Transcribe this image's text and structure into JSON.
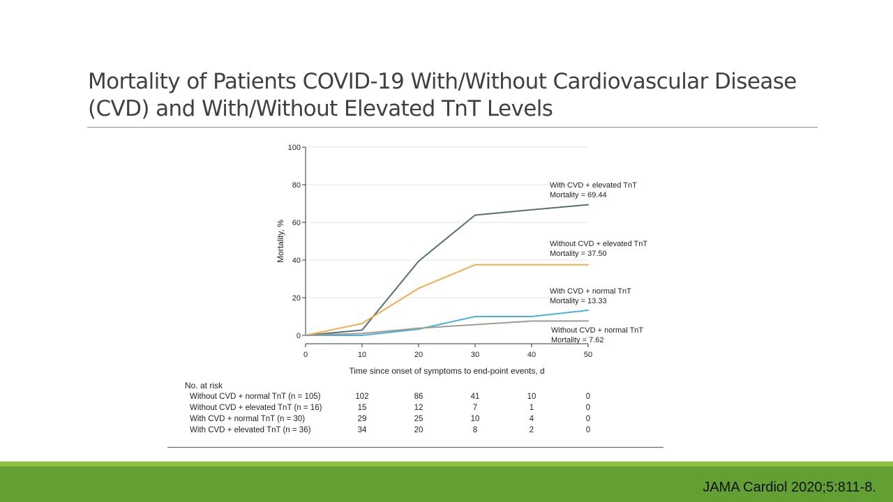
{
  "slide": {
    "title_line1": "Mortality of Patients COVID-19 With/Without Cardiovascular Disease",
    "title_line2": "(CVD) and With/Without Elevated TnT Levels",
    "citation": "JAMA Cardiol 2020;5:811-8."
  },
  "colors": {
    "accent_green": "#62a033",
    "accent_green_light": "#8cbf42"
  },
  "chart_data": {
    "type": "line",
    "xlabel": "Time since onset of symptoms to end-point events, d",
    "ylabel": "Mortality, %",
    "xlim": [
      0,
      50
    ],
    "ylim": [
      0,
      100
    ],
    "xticks": [
      0,
      10,
      20,
      30,
      40,
      50
    ],
    "yticks": [
      0,
      20,
      40,
      60,
      80,
      100
    ],
    "x": [
      0,
      10,
      20,
      30,
      40,
      50
    ],
    "grid": false,
    "series": [
      {
        "name": "With CVD + elevated TnT",
        "values": [
          0,
          2.8,
          39.4,
          63.9,
          66.7,
          69.4
        ],
        "color": "#546e7a",
        "label_line1": "With CVD + elevated TnT",
        "label_line2": "Mortality = 69.44"
      },
      {
        "name": "Without CVD + elevated TnT",
        "values": [
          0,
          6.3,
          25.0,
          37.5,
          37.5,
          37.5
        ],
        "color": "#f0ad4e",
        "label_line1": "Without CVD + elevated TnT",
        "label_line2": "Mortality = 37.50"
      },
      {
        "name": "With CVD + normal TnT",
        "values": [
          0,
          0,
          3.3,
          10.0,
          10.0,
          13.33
        ],
        "color": "#4ab1dc",
        "label_line1": "With CVD + normal TnT",
        "label_line2": "Mortality = 13.33"
      },
      {
        "name": "Without CVD + normal TnT",
        "values": [
          0,
          1.0,
          3.8,
          5.7,
          7.6,
          7.62
        ],
        "color": "#a39a93",
        "label_line1": "Without CVD + normal TnT",
        "label_line2": "Mortality = 7.62"
      }
    ],
    "risk_table": {
      "title": "No. at risk",
      "rows": [
        {
          "label": "Without CVD + normal TnT (n = 105)",
          "values": [
            "102",
            "86",
            "41",
            "10",
            "0"
          ]
        },
        {
          "label": "Without CVD + elevated TnT (n = 16)",
          "values": [
            "15",
            "12",
            "7",
            "1",
            "0"
          ]
        },
        {
          "label": "With CVD + normal TnT (n = 30)",
          "values": [
            "29",
            "25",
            "10",
            "4",
            "0"
          ]
        },
        {
          "label": "With CVD + elevated TnT (n = 36)",
          "values": [
            "34",
            "20",
            "8",
            "2",
            "0"
          ]
        }
      ]
    }
  }
}
